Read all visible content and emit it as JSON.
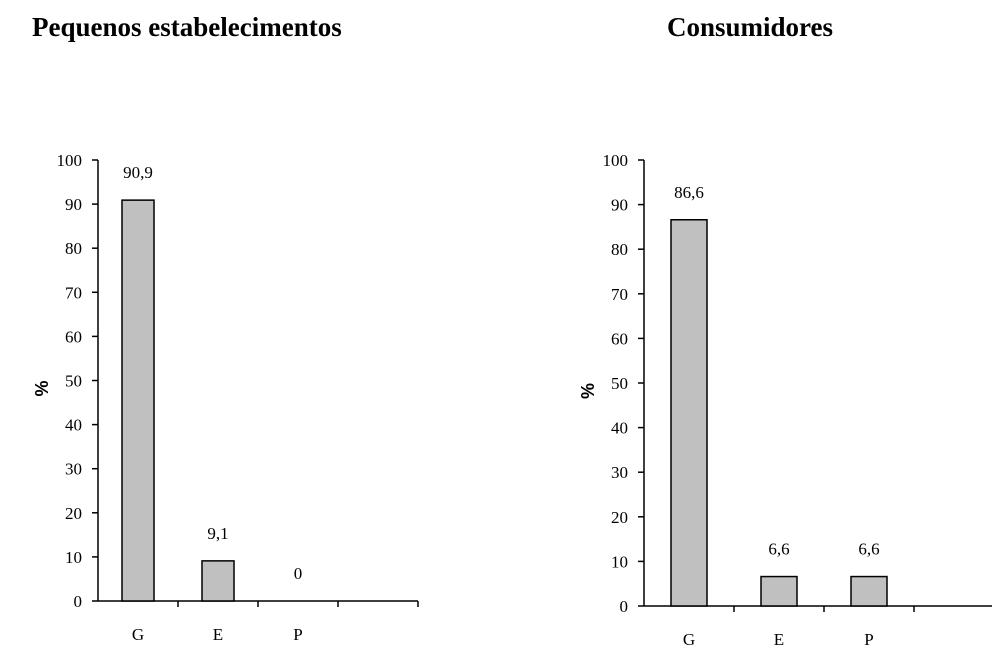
{
  "chart_data": [
    {
      "type": "bar",
      "title": "Pequenos estabelecimentos",
      "ylabel": "%",
      "xlabel": "",
      "categories": [
        "G",
        "E",
        "P"
      ],
      "values": [
        90.9,
        9.1,
        0
      ],
      "data_labels": [
        "90,9",
        "9,1",
        "0"
      ],
      "ylim": [
        0,
        100
      ],
      "yticks": [
        "0",
        "10",
        "20",
        "30",
        "40",
        "50",
        "60",
        "70",
        "80",
        "90",
        "100"
      ],
      "bar_color": "#c0c0c0",
      "grid": false,
      "legend": "none"
    },
    {
      "type": "bar",
      "title": "Consumidores",
      "ylabel": "%",
      "xlabel": "",
      "categories": [
        "G",
        "E",
        "P"
      ],
      "values": [
        86.6,
        6.6,
        6.6
      ],
      "data_labels": [
        "86,6",
        "6,6",
        "6,6"
      ],
      "ylim": [
        0,
        100
      ],
      "yticks": [
        "0",
        "10",
        "20",
        "30",
        "40",
        "50",
        "60",
        "70",
        "80",
        "90",
        "100"
      ],
      "bar_color": "#c0c0c0",
      "grid": false,
      "legend": "none"
    }
  ]
}
